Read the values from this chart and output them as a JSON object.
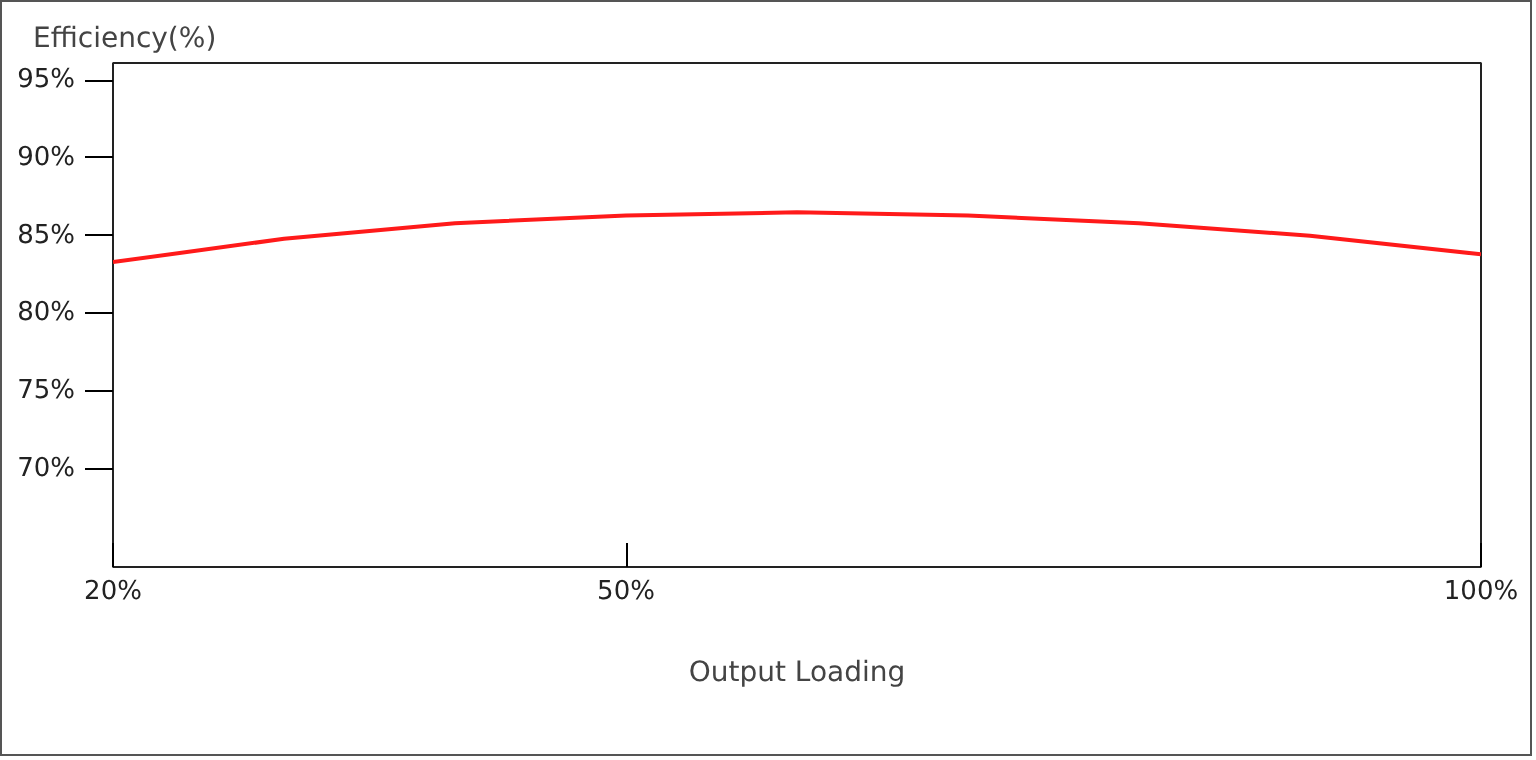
{
  "chart_data": {
    "type": "line",
    "ylabel": "Efficiency(%)",
    "xlabel": "Output Loading",
    "x": [
      20,
      30,
      40,
      50,
      60,
      70,
      80,
      90,
      100
    ],
    "series": [
      {
        "color": "#ff1a1a",
        "values": [
          83.3,
          84.8,
          85.8,
          86.3,
          86.5,
          86.3,
          85.8,
          85.0,
          83.8
        ]
      }
    ],
    "xlim": [
      20,
      100
    ],
    "ylim": [
      63.7,
      96.1
    ],
    "xticks": [
      {
        "value": 20,
        "label": "20%"
      },
      {
        "value": 50,
        "label": "50%"
      },
      {
        "value": 100,
        "label": "100%"
      }
    ],
    "yticks": [
      {
        "value": 70,
        "label": "70%"
      },
      {
        "value": 75,
        "label": "75%"
      },
      {
        "value": 80,
        "label": "80%"
      },
      {
        "value": 85,
        "label": "85%"
      },
      {
        "value": 90,
        "label": "90%"
      },
      {
        "value": 95,
        "label": "95%"
      }
    ],
    "grid": false,
    "marker": "none",
    "line_style": "solid"
  }
}
